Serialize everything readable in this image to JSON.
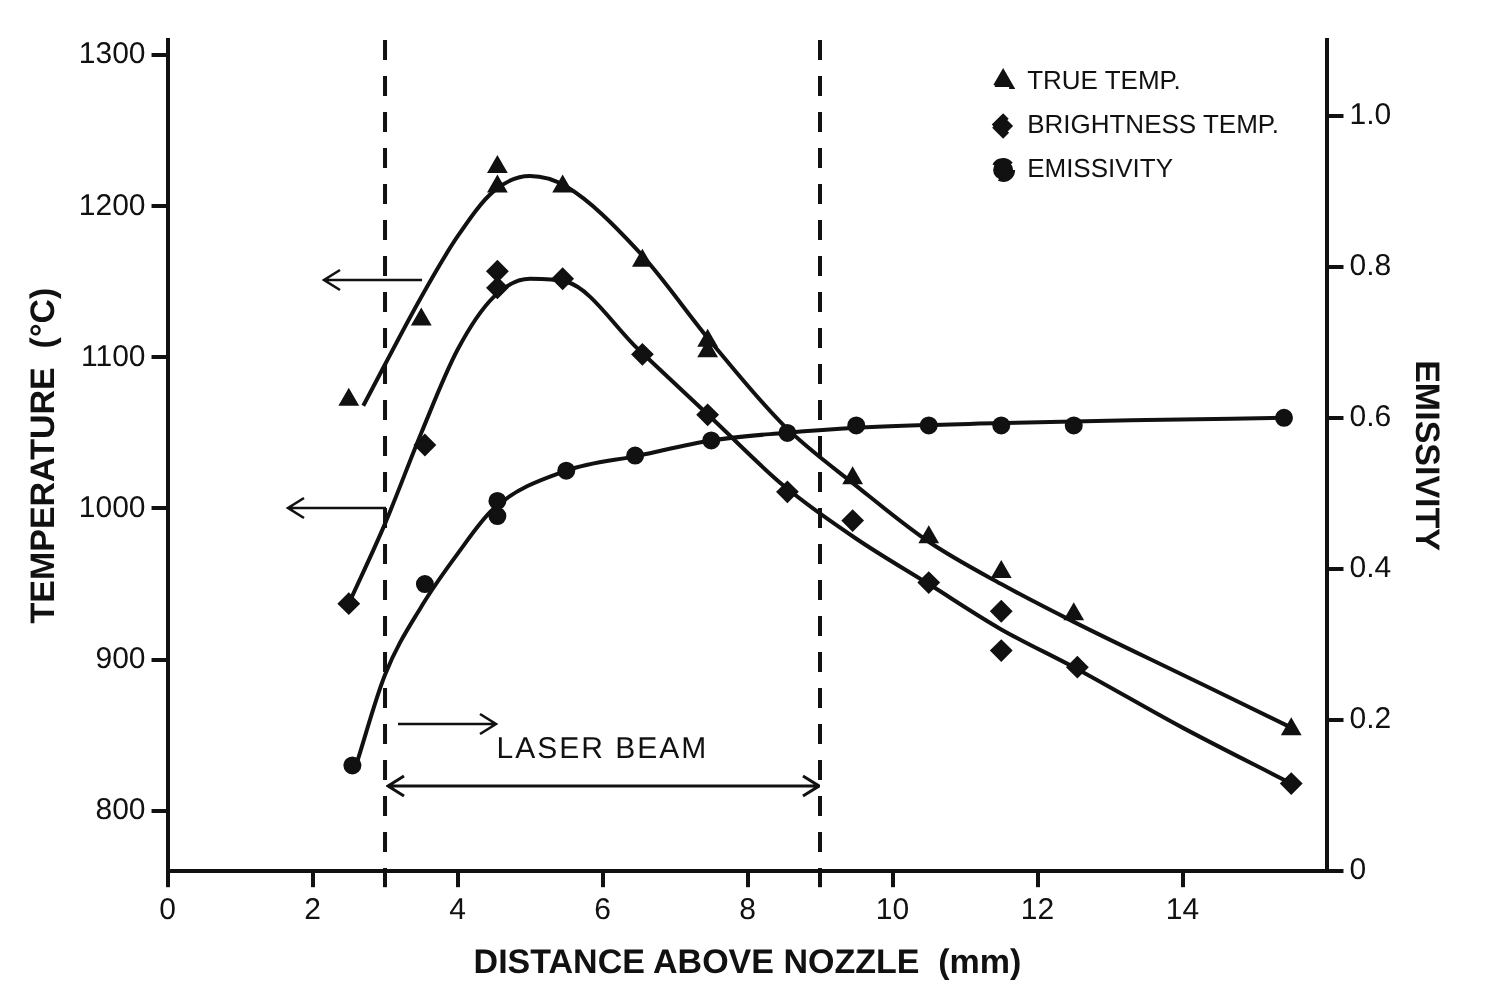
{
  "chart_data": {
    "type": "scatter",
    "xlabel": "DISTANCE ABOVE NOZZLE  (mm)",
    "ylabel": "TEMPERATURE  (°C)",
    "y2label": "EMISSIVITY",
    "xlim": [
      0,
      16
    ],
    "xticks": [
      0,
      2,
      {
        "value": 3,
        "label": null
      },
      4,
      6,
      8,
      {
        "value": 9,
        "label": null
      },
      10,
      12,
      14
    ],
    "ylim": [
      760,
      1310
    ],
    "yticks": [
      800,
      900,
      1000,
      1100,
      1200,
      1300
    ],
    "y2lim": [
      0,
      1.1
    ],
    "y2ticks": [
      0,
      0.2,
      0.4,
      0.6,
      0.8,
      {
        "value": 1,
        "label": "1.0"
      }
    ],
    "grid": false,
    "legend": "top right",
    "series": [
      {
        "name": "TRUE TEMP.",
        "type": "scatter",
        "marker": "triangle",
        "color": "#111111",
        "x": [
          2.5,
          3.5,
          4.55,
          4.55,
          5.45,
          6.55,
          7.45,
          7.45,
          9.45,
          10.5,
          11.5,
          12.5,
          15.5
        ],
        "values": [
          1072,
          1125,
          1226,
          1213,
          1213,
          1164,
          1111,
          1104,
          1020,
          981,
          958,
          930,
          854
        ]
      },
      {
        "name": "BRIGHTNESS TEMP.",
        "type": "scatter",
        "marker": "diamond",
        "color": "#111111",
        "x": [
          2.5,
          3.55,
          4.55,
          4.55,
          5.45,
          6.55,
          7.45,
          8.55,
          9.45,
          10.5,
          11.5,
          11.5,
          12.55,
          15.5
        ],
        "values": [
          937,
          1042,
          1157,
          1146,
          1152,
          1102,
          1062,
          1011,
          992,
          951,
          932,
          906,
          895,
          818
        ]
      },
      {
        "name": "EMISSIVITY",
        "type": "scatter",
        "marker": "circle",
        "axis": "y2",
        "color": "#111111",
        "x": [
          2.55,
          3.55,
          4.55,
          4.55,
          5.5,
          6.45,
          7.5,
          8.55,
          9.5,
          10.5,
          11.5,
          12.5,
          15.4
        ],
        "values": [
          0.14,
          0.38,
          0.49,
          0.47,
          0.53,
          0.55,
          0.57,
          0.58,
          0.59,
          0.59,
          0.59,
          0.59,
          0.6
        ]
      },
      {
        "type": "line",
        "marker": "none",
        "color": "#111111",
        "x": [
          2.7,
          3.5,
          4,
          4.5,
          5,
          5.5,
          6.5,
          7.5,
          8.5,
          9.5,
          10.5,
          11.5,
          12.5,
          14,
          15.5
        ],
        "values": [
          1068,
          1140,
          1180,
          1210,
          1220,
          1213,
          1170,
          1110,
          1055,
          1015,
          978,
          950,
          925,
          890,
          855
        ]
      },
      {
        "type": "line",
        "marker": "none",
        "color": "#111111",
        "x": [
          2.5,
          3,
          3.5,
          4,
          4.5,
          5,
          5.5,
          6.5,
          7.5,
          8.5,
          9.5,
          10.5,
          11.5,
          12.5,
          14,
          15.5
        ],
        "values": [
          937,
          990,
          1050,
          1105,
          1140,
          1152,
          1150,
          1105,
          1060,
          1015,
          980,
          950,
          920,
          895,
          855,
          818
        ]
      },
      {
        "type": "line",
        "marker": "none",
        "axis": "y2",
        "color": "#111111",
        "x": [
          2.6,
          3,
          3.5,
          4,
          4.5,
          5.5,
          6.5,
          7.5,
          8.5,
          9.5,
          11.5,
          13.5,
          15.4
        ],
        "values": [
          0.14,
          0.26,
          0.35,
          0.42,
          0.48,
          0.53,
          0.55,
          0.57,
          0.58,
          0.587,
          0.593,
          0.597,
          0.6
        ]
      }
    ],
    "ref_lines": [
      {
        "axis": "x",
        "value": 3,
        "line_style": "dashed",
        "color": "#111111"
      },
      {
        "axis": "x",
        "value": 9,
        "line_style": "dashed",
        "color": "#111111"
      }
    ],
    "annotations": [
      "LASER BEAM"
    ]
  }
}
